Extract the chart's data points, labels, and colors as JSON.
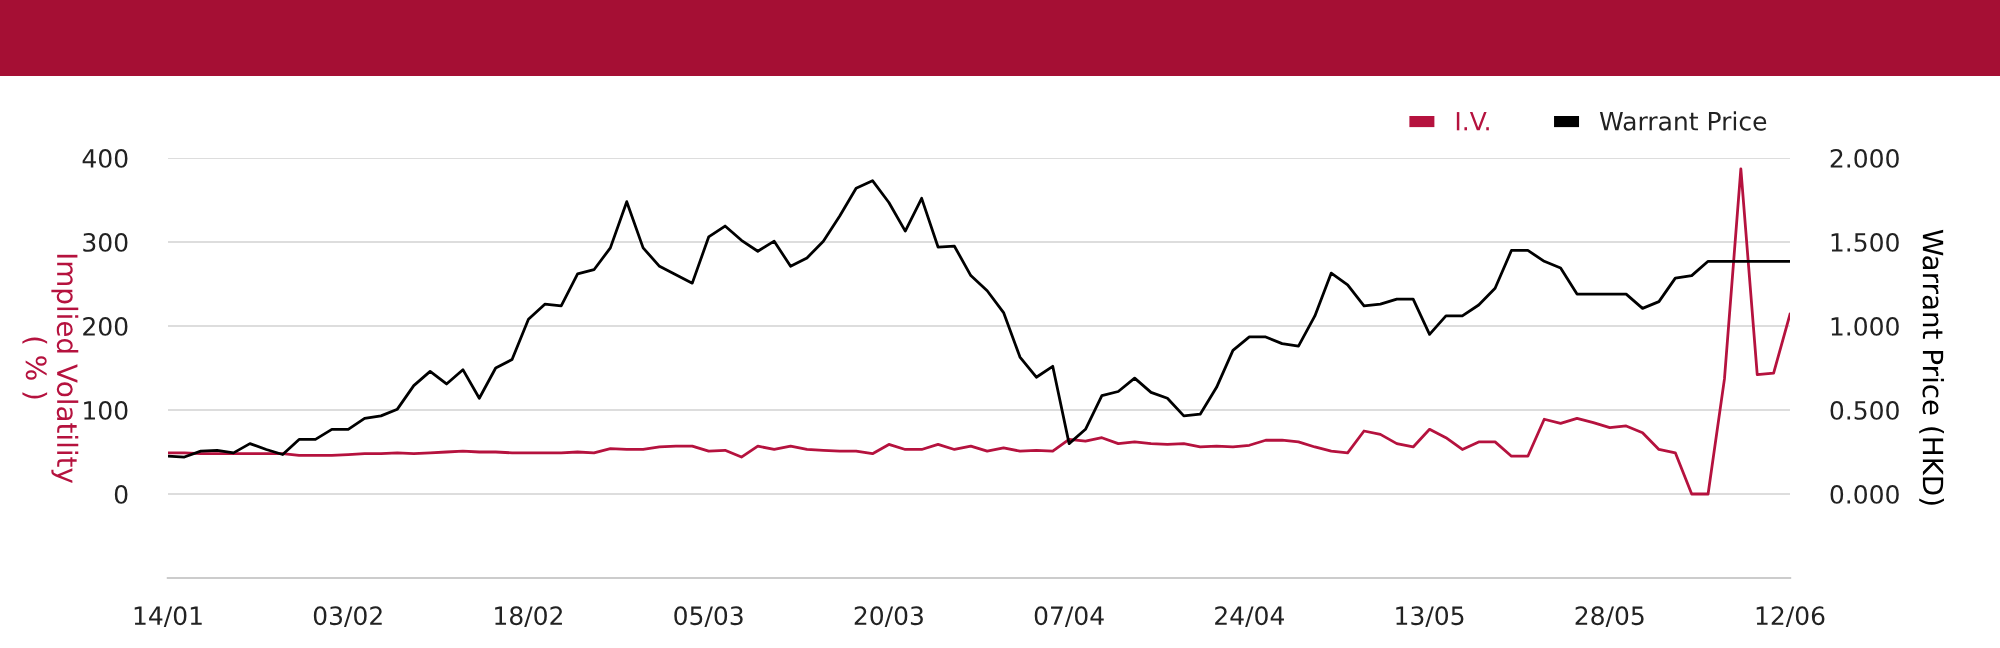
{
  "chart_data": {
    "type": "line",
    "categories": [
      "14/01",
      null,
      null,
      null,
      null,
      null,
      null,
      null,
      null,
      null,
      null,
      "03/02",
      null,
      null,
      null,
      null,
      null,
      null,
      null,
      null,
      null,
      null,
      "18/02",
      null,
      null,
      null,
      null,
      null,
      null,
      null,
      null,
      null,
      null,
      "05/03",
      null,
      null,
      null,
      null,
      null,
      null,
      null,
      null,
      null,
      null,
      "20/03",
      null,
      null,
      null,
      null,
      null,
      null,
      null,
      null,
      null,
      null,
      "07/04",
      null,
      null,
      null,
      null,
      null,
      null,
      null,
      null,
      null,
      null,
      "24/04",
      null,
      null,
      null,
      null,
      null,
      null,
      null,
      null,
      null,
      null,
      "13/05",
      null,
      null,
      null,
      null,
      null,
      null,
      null,
      null,
      null,
      null,
      "28/05",
      null,
      null,
      null,
      null,
      null,
      null,
      null,
      null,
      null,
      null,
      "12/06"
    ],
    "series": [
      {
        "name": "I.V.",
        "color": "#b5123e",
        "axis": "y",
        "values": [
          49,
          49,
          48,
          48,
          48,
          48,
          48,
          48,
          46,
          46,
          46,
          47,
          48,
          48,
          49,
          48,
          49,
          50,
          51,
          50,
          50,
          49,
          49,
          49,
          49,
          50,
          49,
          54,
          53,
          53,
          56,
          57,
          57,
          51,
          52,
          44,
          57,
          53,
          57,
          53,
          52,
          51,
          51,
          48,
          59,
          53,
          53,
          59,
          53,
          57,
          51,
          55,
          51,
          52,
          51,
          65,
          63,
          67,
          60,
          62,
          60,
          59,
          60,
          56,
          57,
          56,
          58,
          64,
          64,
          62,
          56,
          51,
          49,
          75,
          71,
          60,
          56,
          77,
          67,
          53,
          62,
          62,
          45,
          45,
          89,
          84,
          90,
          85,
          79,
          81,
          73,
          53,
          49,
          0,
          0,
          137,
          387,
          142,
          144,
          214
        ]
      },
      {
        "name": "Warrant Price",
        "color": "#000000",
        "axis": "y2",
        "values": [
          0.225,
          0.22,
          0.255,
          0.26,
          0.245,
          0.3,
          0.265,
          0.235,
          0.325,
          0.325,
          0.385,
          0.385,
          0.45,
          0.465,
          0.505,
          0.645,
          0.73,
          0.655,
          0.74,
          0.57,
          0.75,
          0.8,
          1.04,
          1.13,
          1.12,
          1.31,
          1.335,
          1.465,
          1.74,
          1.465,
          1.355,
          1.305,
          1.255,
          1.53,
          1.595,
          1.51,
          1.445,
          1.505,
          1.355,
          1.405,
          1.505,
          1.655,
          1.82,
          1.865,
          1.735,
          1.565,
          1.76,
          1.47,
          1.475,
          1.3,
          1.21,
          1.08,
          0.815,
          0.695,
          0.76,
          0.3,
          0.385,
          0.585,
          0.61,
          0.69,
          0.605,
          0.57,
          0.465,
          0.475,
          0.635,
          0.855,
          0.935,
          0.935,
          0.895,
          0.88,
          1.06,
          1.315,
          1.245,
          1.12,
          1.13,
          1.16,
          1.16,
          0.95,
          1.06,
          1.06,
          1.125,
          1.225,
          1.45,
          1.45,
          1.385,
          1.345,
          1.19,
          1.19,
          1.19,
          1.19,
          1.105,
          1.145,
          1.285,
          1.3,
          1.385,
          1.385,
          1.385,
          1.385,
          1.385,
          1.385
        ]
      }
    ],
    "ylabel": "Implied Volatility\n( % )",
    "y2label": "Warrant Price (HKD)",
    "ylim": [
      -100,
      400
    ],
    "yticks": [
      0,
      100,
      200,
      300,
      400
    ],
    "y2lim": [
      -0.5,
      2.0
    ],
    "y2ticks": [
      {
        "value": 0,
        "label": "0.000"
      },
      {
        "value": 0.5,
        "label": "0.500"
      },
      {
        "value": 1,
        "label": "1.000"
      },
      {
        "value": 1.5,
        "label": "1.500"
      },
      {
        "value": 2,
        "label": "2.000"
      }
    ],
    "grid": "y",
    "legend": "top right",
    "marker": "none",
    "line_style": "solid"
  }
}
